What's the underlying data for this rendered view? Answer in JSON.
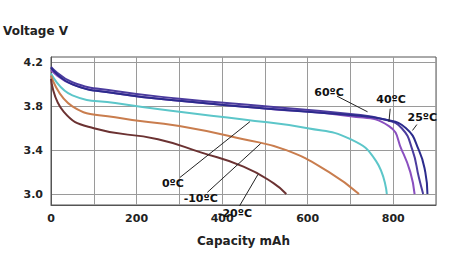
{
  "chart_data": {
    "type": "line",
    "x_label": "Capacity mAh",
    "y_label": "Voltage V",
    "xlim": [
      0,
      900
    ],
    "xticks": [
      0,
      200,
      400,
      600,
      800
    ],
    "ylim": [
      2.9,
      4.25
    ],
    "yticks": [
      {
        "value": 3.0,
        "label": "3.0"
      },
      3.4,
      3.8,
      4.2
    ],
    "grid": true,
    "series": [
      {
        "name": "60ºC",
        "color": "#4b3c9e",
        "x": [
          0,
          50,
          150,
          300,
          500,
          700,
          780,
          820,
          845,
          860,
          870
        ],
        "values": [
          4.16,
          4.02,
          3.94,
          3.87,
          3.8,
          3.73,
          3.68,
          3.6,
          3.4,
          3.15,
          3.0
        ],
        "label": [
          650,
          3.93
        ],
        "pointer": [
          740,
          3.75
        ]
      },
      {
        "name": "40ºC",
        "color": "#8a4fc0",
        "x": [
          0,
          50,
          150,
          300,
          500,
          700,
          790,
          820,
          840,
          850
        ],
        "values": [
          4.13,
          4.0,
          3.92,
          3.85,
          3.78,
          3.71,
          3.62,
          3.4,
          3.2,
          3.0
        ],
        "label": [
          795,
          3.86
        ],
        "pointer": [
          790,
          3.66
        ]
      },
      {
        "name": "25ºC",
        "color": "#2b2b8c",
        "x": [
          0,
          50,
          150,
          300,
          500,
          700,
          780,
          830,
          860,
          875,
          880
        ],
        "values": [
          4.15,
          4.0,
          3.92,
          3.85,
          3.78,
          3.72,
          3.68,
          3.6,
          3.4,
          3.2,
          3.0
        ],
        "label": [
          868,
          3.7
        ],
        "pointer": [
          845,
          3.58
        ]
      },
      {
        "name": "0ºC",
        "color": "#5cc6c9",
        "x": [
          0,
          50,
          150,
          300,
          450,
          600,
          700,
          760,
          785
        ],
        "values": [
          4.1,
          3.9,
          3.83,
          3.75,
          3.68,
          3.6,
          3.5,
          3.3,
          3.0
        ],
        "label": [
          285,
          3.1
        ],
        "pointer": [
          465,
          3.66
        ]
      },
      {
        "name": "-10ºC",
        "color": "#c97d4e",
        "x": [
          0,
          50,
          150,
          300,
          450,
          550,
          650,
          720
        ],
        "values": [
          4.08,
          3.8,
          3.7,
          3.62,
          3.5,
          3.4,
          3.2,
          3.0
        ],
        "label": [
          350,
          2.96
        ],
        "pointer": [
          490,
          3.46
        ]
      },
      {
        "name": "-20ºC",
        "color": "#6b3232",
        "x": [
          0,
          30,
          100,
          250,
          350,
          450,
          520,
          550
        ],
        "values": [
          4.05,
          3.75,
          3.6,
          3.5,
          3.38,
          3.25,
          3.1,
          3.0
        ],
        "label": [
          430,
          2.82
        ],
        "pointer": [
          484,
          3.18
        ]
      }
    ]
  }
}
